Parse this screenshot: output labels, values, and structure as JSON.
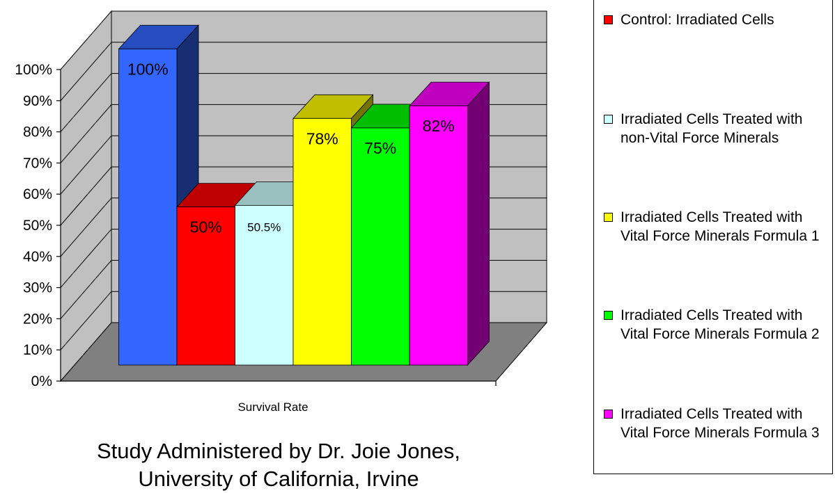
{
  "chart_data": {
    "type": "bar",
    "subtype": "3d-clustered-column",
    "xlabel": "Survival Rate",
    "ylabel": "",
    "ylim": [
      0,
      100
    ],
    "yticks": [
      "0%",
      "10%",
      "20%",
      "30%",
      "40%",
      "50%",
      "60%",
      "70%",
      "80%",
      "90%",
      "100%"
    ],
    "grid": true,
    "legend_position": "right",
    "categories": [
      "Survival Rate"
    ],
    "series": [
      {
        "name": "",
        "values": [
          100
        ],
        "label": "100%",
        "color": "#3366ff"
      },
      {
        "name": "Control: Irradiated Cells",
        "values": [
          50
        ],
        "label": "50%",
        "color": "#ff0000"
      },
      {
        "name": "Irradiated Cells Treated with non-Vital Force Minerals",
        "values": [
          50.5
        ],
        "label": "50.5%",
        "color": "#ccffff"
      },
      {
        "name": "Irradiated Cells Treated with Vital Force Minerals Formula 1",
        "values": [
          78
        ],
        "label": "78%",
        "color": "#ffff00"
      },
      {
        "name": "Irradiated Cells Treated with Vital Force Minerals Formula 2",
        "values": [
          75
        ],
        "label": "75%",
        "color": "#00ff00"
      },
      {
        "name": "Irradiated Cells Treated with Vital Force Minerals Formula 3",
        "values": [
          82
        ],
        "label": "82%",
        "color": "#ff00ff"
      }
    ],
    "annotation": [
      "Study Administered by Dr. Joie Jones,",
      "University of California, Irvine"
    ]
  },
  "colors": {
    "wall": "#c0c0c0",
    "floor": "#808080"
  }
}
